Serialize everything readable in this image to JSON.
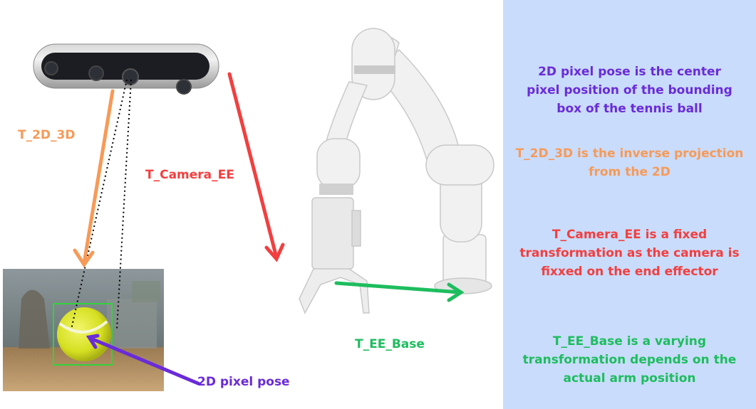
{
  "labels": {
    "t2d3d": "T_2D_3D",
    "tcamera": "T_Camera_EE",
    "teebase": "T_EE_Base",
    "pixel_pose": "2D pixel pose"
  },
  "notes": {
    "pixel_pose": "2D pixel pose is the center pixel position of the bounding box of the tennis ball",
    "t2d3d": "T_2D_3D is the inverse projection from the 2D",
    "tcamera": "T_Camera_EE is a fixed transformation as the camera is fixxed on the end effector",
    "teebase": "T_EE_Base is a varying transformation depends on the actual arm position"
  },
  "colors": {
    "orange": "#f79a57",
    "red": "#f23f3f",
    "green": "#1dbd5e",
    "purple": "#6a2bd9",
    "panel": "#c9dcfb"
  }
}
